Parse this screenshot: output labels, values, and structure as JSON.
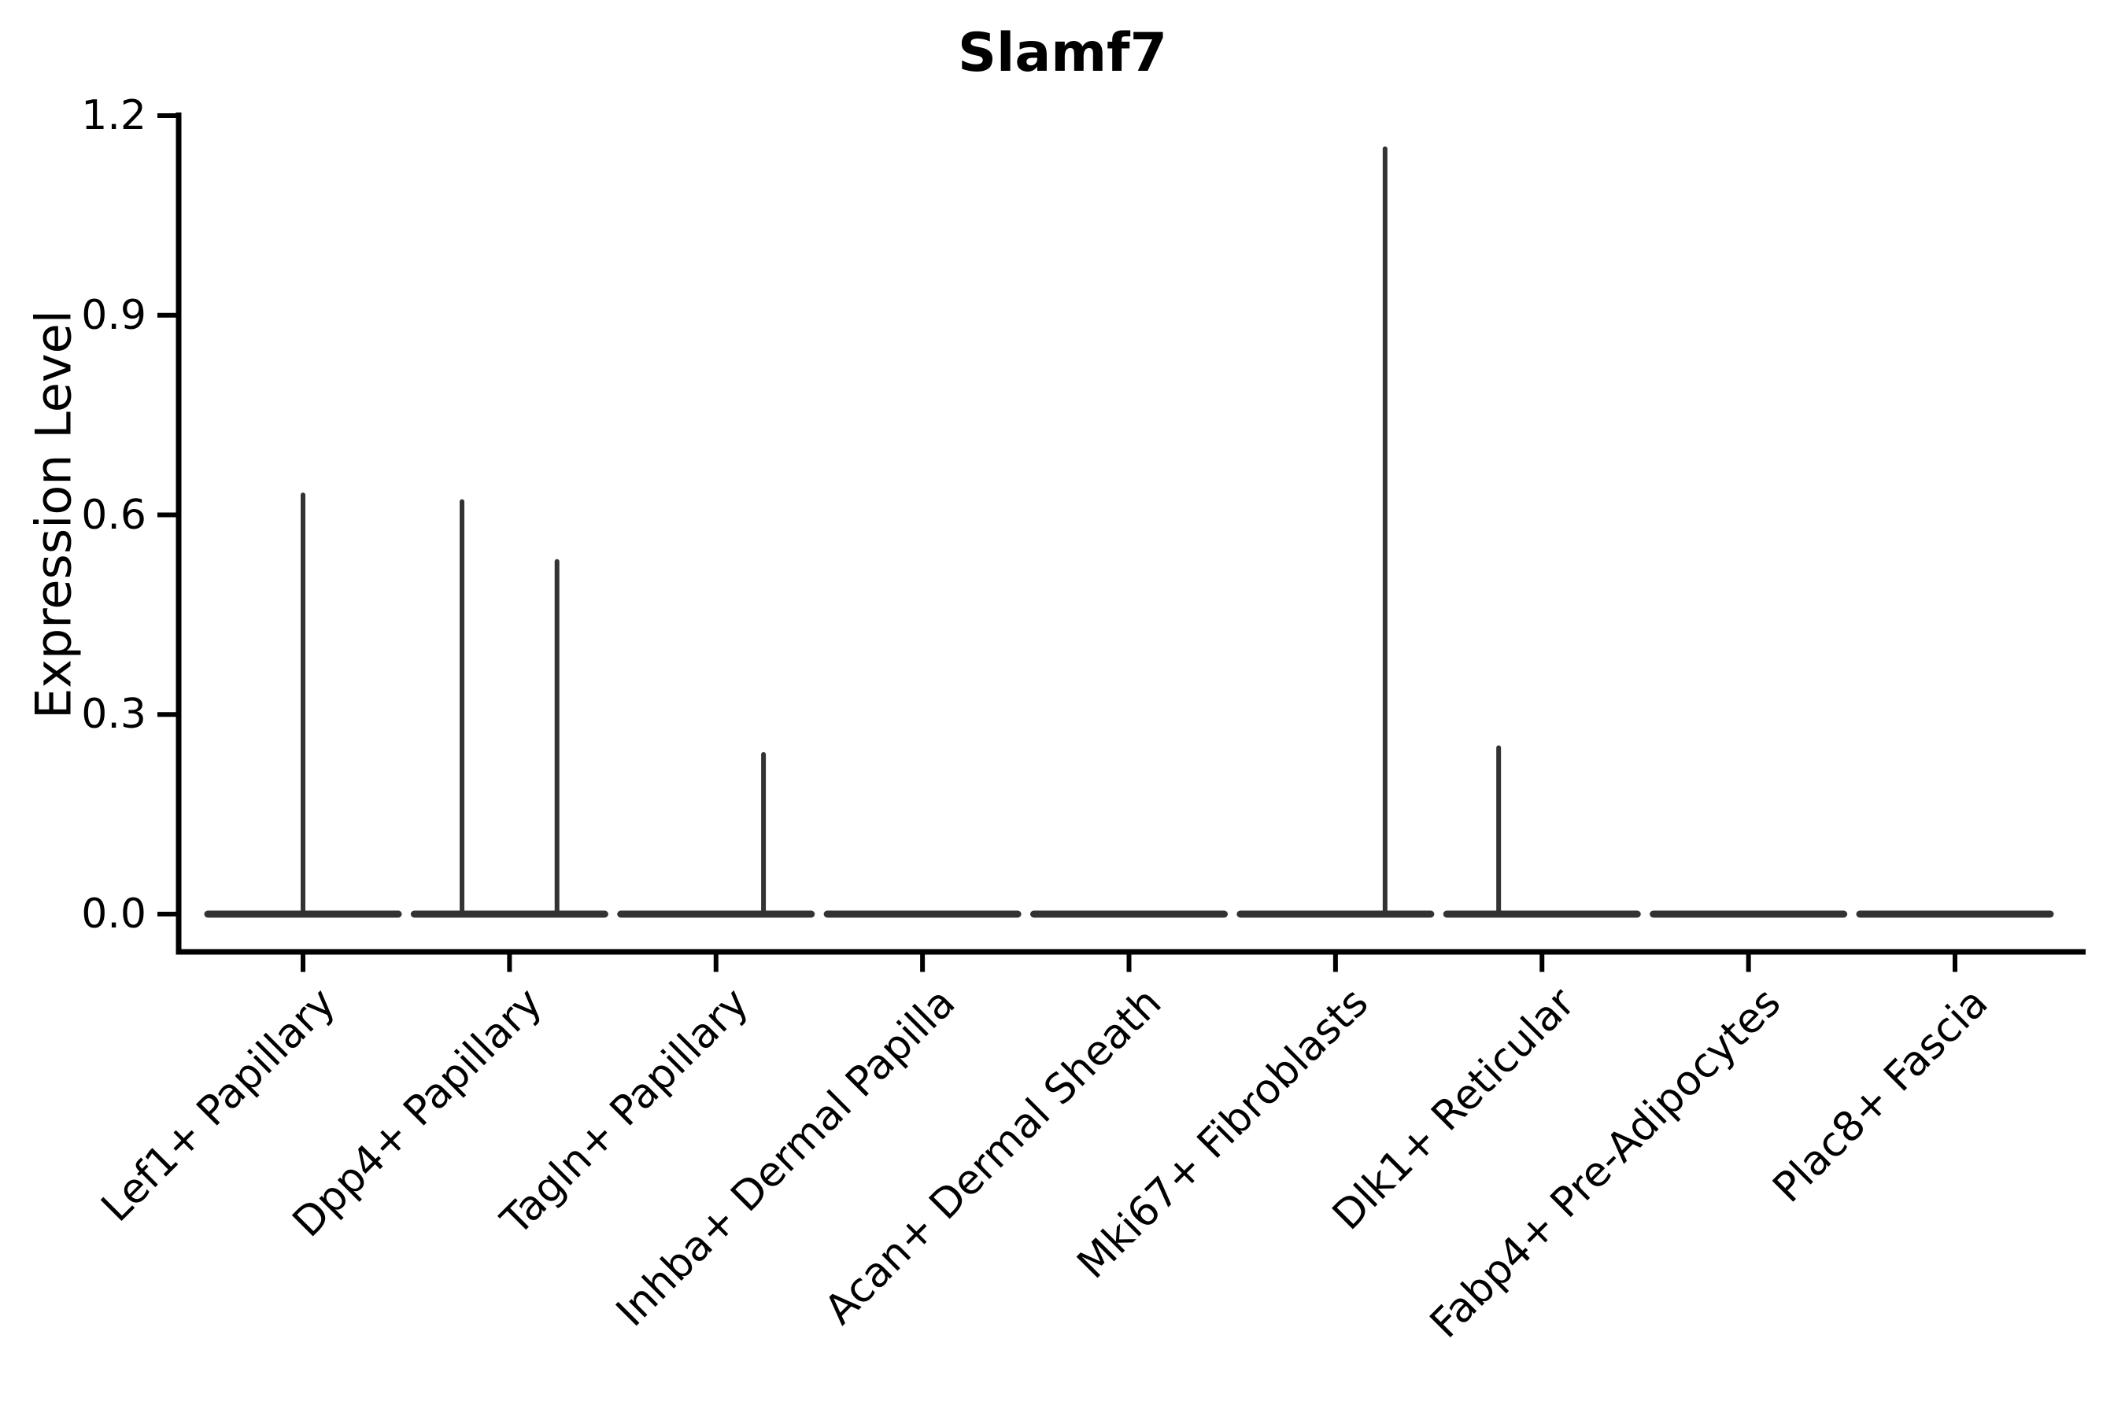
{
  "figure": {
    "title": "Slamf7",
    "background_color": "#ffffff",
    "violin_color": "#333333",
    "axis_color": "#000000"
  },
  "axes": {
    "ylabel": "Expression Level",
    "xlabel": "",
    "ytick_labels": [
      "1.2",
      "0.9",
      "0.6",
      "0.3",
      "0.0"
    ]
  },
  "chart_data": {
    "type": "violin",
    "title": "Slamf7",
    "ylabel": "Expression Level",
    "xlabel": "",
    "ylim": [
      0,
      1.2
    ],
    "yticks": [
      1.2,
      0.9,
      0.6,
      0.3,
      0.0
    ],
    "grid": false,
    "legend": "none",
    "description": "Zero-inflated expression violins: each cell type shows a flat horizontal violin body at 0 with thin vertical spikes reaching the few non-zero expression values.",
    "violin_half_width_units": 0.46,
    "categories": [
      "Lef1+ Papillary",
      "Dpp4+ Papillary",
      "Tagln+ Papillary",
      "Inhba+ Dermal Papilla",
      "Acan+ Dermal Sheath",
      "Mki67+ Fibroblasts",
      "Dlk1+ Reticular",
      "Fabp4+ Pre-Adipocytes",
      "Plac8+ Fascia"
    ],
    "violins": [
      {
        "category": "Lef1+ Papillary",
        "body_value": 0.0,
        "max_expression": 0.63,
        "spikes": [
          {
            "x_offset": 0.0,
            "value": 0.63
          }
        ]
      },
      {
        "category": "Dpp4+ Papillary",
        "body_value": 0.0,
        "max_expression": 0.62,
        "spikes": [
          {
            "x_offset": -0.23,
            "value": 0.62
          },
          {
            "x_offset": 0.23,
            "value": 0.53
          }
        ]
      },
      {
        "category": "Tagln+ Papillary",
        "body_value": 0.0,
        "max_expression": 0.24,
        "spikes": [
          {
            "x_offset": 0.23,
            "value": 0.24
          }
        ]
      },
      {
        "category": "Inhba+ Dermal Papilla",
        "body_value": 0.0,
        "max_expression": 0.0,
        "spikes": []
      },
      {
        "category": "Acan+ Dermal Sheath",
        "body_value": 0.0,
        "max_expression": 0.0,
        "spikes": []
      },
      {
        "category": "Mki67+ Fibroblasts",
        "body_value": 0.0,
        "max_expression": 1.15,
        "spikes": [
          {
            "x_offset": 0.24,
            "value": 1.15
          }
        ]
      },
      {
        "category": "Dlk1+ Reticular",
        "body_value": 0.0,
        "max_expression": 0.25,
        "spikes": [
          {
            "x_offset": -0.21,
            "value": 0.25
          }
        ]
      },
      {
        "category": "Fabp4+ Pre-Adipocytes",
        "body_value": 0.0,
        "max_expression": 0.0,
        "spikes": []
      },
      {
        "category": "Plac8+ Fascia",
        "body_value": 0.0,
        "max_expression": 0.0,
        "spikes": []
      }
    ]
  }
}
